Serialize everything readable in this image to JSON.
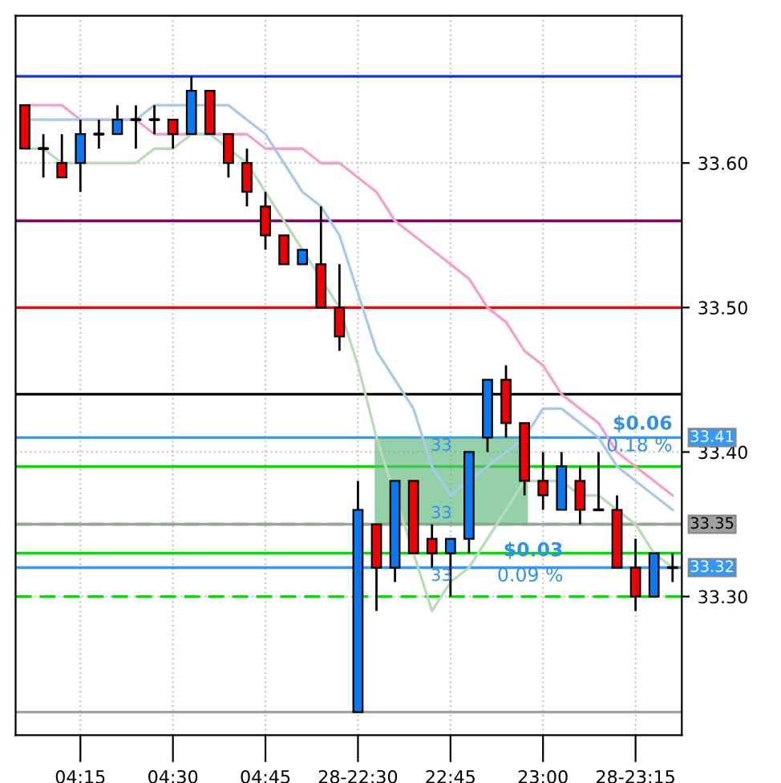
{
  "chart_data": {
    "type": "candlestick",
    "categories": [
      null,
      null,
      null,
      "04:15",
      null,
      null,
      null,
      null,
      "04:30",
      null,
      null,
      null,
      null,
      "04:45",
      null,
      null,
      null,
      null,
      "28-22:30",
      null,
      null,
      null,
      null,
      "22:45",
      null,
      null,
      null,
      null,
      "23:00",
      null,
      null,
      null,
      null,
      "28-23:15",
      null,
      null
    ],
    "ohlc": [
      [
        33.64,
        33.64,
        33.61,
        33.61
      ],
      [
        33.61,
        33.62,
        33.59,
        33.61
      ],
      [
        33.6,
        33.62,
        33.59,
        33.59
      ],
      [
        33.6,
        33.63,
        33.58,
        33.62
      ],
      [
        33.62,
        33.63,
        33.61,
        33.62
      ],
      [
        33.62,
        33.64,
        33.62,
        33.63
      ],
      [
        33.63,
        33.64,
        33.61,
        33.63
      ],
      [
        33.63,
        33.64,
        33.62,
        33.63
      ],
      [
        33.63,
        33.63,
        33.61,
        33.62
      ],
      [
        33.62,
        33.66,
        33.62,
        33.65
      ],
      [
        33.65,
        33.65,
        33.62,
        33.62
      ],
      [
        33.62,
        33.62,
        33.59,
        33.6
      ],
      [
        33.6,
        33.61,
        33.57,
        33.58
      ],
      [
        33.57,
        33.58,
        33.54,
        33.55
      ],
      [
        33.55,
        33.55,
        33.53,
        33.53
      ],
      [
        33.53,
        33.54,
        33.53,
        33.54
      ],
      [
        33.53,
        33.57,
        33.5,
        33.5
      ],
      [
        33.5,
        33.53,
        33.47,
        33.48
      ],
      [
        33.22,
        33.38,
        33.22,
        33.36
      ],
      [
        33.35,
        33.35,
        33.29,
        33.32
      ],
      [
        33.32,
        33.38,
        33.31,
        33.38
      ],
      [
        33.38,
        33.38,
        33.33,
        33.33
      ],
      [
        33.34,
        33.35,
        33.32,
        33.33
      ],
      [
        33.33,
        33.34,
        33.3,
        33.34
      ],
      [
        33.34,
        33.4,
        33.33,
        33.4
      ],
      [
        33.41,
        33.45,
        33.4,
        33.45
      ],
      [
        33.45,
        33.46,
        33.41,
        33.42
      ],
      [
        33.42,
        33.42,
        33.37,
        33.38
      ],
      [
        33.38,
        33.4,
        33.36,
        33.37
      ],
      [
        33.36,
        33.4,
        33.36,
        33.39
      ],
      [
        33.38,
        33.39,
        33.35,
        33.36
      ],
      [
        33.36,
        33.4,
        33.36,
        33.36
      ],
      [
        33.36,
        33.37,
        33.32,
        33.32
      ],
      [
        33.32,
        33.34,
        33.29,
        33.3
      ],
      [
        33.3,
        33.33,
        33.3,
        33.33
      ],
      [
        33.32,
        33.33,
        33.31,
        33.32
      ]
    ],
    "colors": [
      "#f00000",
      "#000000",
      "#f00000",
      "#0a78f0",
      "#000000",
      "#0a78f0",
      "#000000",
      "#000000",
      "#f00000",
      "#0a78f0",
      "#f00000",
      "#f00000",
      "#f00000",
      "#f00000",
      "#f00000",
      "#0a78f0",
      "#f00000",
      "#f00000",
      "#0a78f0",
      "#f00000",
      "#0a78f0",
      "#f00000",
      "#f00000",
      "#0a78f0",
      "#0a78f0",
      "#0a78f0",
      "#f00000",
      "#f00000",
      "#f00000",
      "#0a78f0",
      "#f00000",
      "#000000",
      "#f00000",
      "#f00000",
      "#0a78f0",
      "#000000"
    ],
    "series": [
      {
        "type": "line",
        "color": "#f4a0c8",
        "values": [
          33.64,
          33.64,
          33.64,
          33.63,
          33.63,
          33.63,
          33.63,
          33.62,
          33.62,
          33.62,
          33.62,
          33.62,
          33.62,
          33.61,
          33.61,
          33.61,
          33.6,
          33.6,
          33.59,
          33.58,
          33.56,
          33.55,
          33.54,
          33.53,
          33.52,
          33.5,
          33.49,
          33.47,
          33.46,
          33.44,
          33.43,
          33.42,
          33.4,
          33.39,
          33.38,
          33.37
        ]
      },
      {
        "type": "line",
        "color": "#a8c8ec",
        "values": [
          33.63,
          33.63,
          33.63,
          33.63,
          33.63,
          33.63,
          33.63,
          33.64,
          33.64,
          33.64,
          33.64,
          33.64,
          33.63,
          33.62,
          33.6,
          33.58,
          33.57,
          33.55,
          33.51,
          33.47,
          33.45,
          33.43,
          33.39,
          33.37,
          33.38,
          33.39,
          33.4,
          33.41,
          33.43,
          33.43,
          33.42,
          33.41,
          33.39,
          33.38,
          33.37,
          33.36
        ]
      },
      {
        "type": "line",
        "color": "#b8dcb8",
        "values": [
          33.61,
          33.61,
          33.6,
          33.6,
          33.6,
          33.6,
          33.6,
          33.61,
          33.61,
          33.62,
          33.62,
          33.61,
          33.6,
          33.58,
          33.56,
          33.54,
          33.52,
          33.5,
          33.46,
          33.41,
          33.37,
          33.33,
          33.29,
          33.31,
          33.32,
          33.34,
          33.36,
          33.38,
          33.38,
          33.38,
          33.37,
          33.37,
          33.36,
          33.35,
          33.33,
          33.32
        ]
      }
    ],
    "ref_lines": [
      {
        "axis": "y",
        "value": 33.66,
        "color": "#1030f0"
      },
      {
        "axis": "y",
        "value": 33.56,
        "color": "#800080"
      },
      {
        "axis": "y",
        "value": 33.5,
        "color": "#ff0000"
      },
      {
        "axis": "y",
        "value": 33.44,
        "color": "#000000"
      },
      {
        "axis": "y",
        "value": 33.39,
        "color": "#00e000"
      },
      {
        "axis": "y",
        "value": 33.35,
        "color": "#00e000",
        "line_style": "dashed"
      },
      {
        "axis": "y",
        "value": 33.33,
        "color": "#00e000"
      },
      {
        "axis": "y",
        "value": 33.3,
        "color": "#00e000",
        "line_style": "dashed"
      },
      {
        "axis": "y",
        "value": 33.22,
        "color": "#a0a0a0"
      },
      {
        "axis": "y",
        "value": 33.35,
        "color": "#a0a0a0",
        "label": "33.35"
      },
      {
        "axis": "y",
        "value": 33.41,
        "color": "#3399ff",
        "label": "33.41"
      },
      {
        "axis": "y",
        "value": 33.32,
        "color": "#3399ff",
        "label": "33.32"
      }
    ],
    "bands": [
      {
        "axis": "y",
        "from": 33.35,
        "to": 33.41,
        "color": "#5cb87a"
      }
    ],
    "annotations": [
      "$0.06",
      "0.18 %",
      "$0.03",
      "0.09 %",
      "33",
      "33",
      "33"
    ],
    "ylim": [
      33.204,
      33.702
    ],
    "yticks": [
      {
        "value": 33.3,
        "label": "33.30"
      },
      {
        "value": 33.4,
        "label": "33.40"
      },
      {
        "value": 33.5,
        "label": "33.50"
      },
      {
        "value": 33.6,
        "label": "33.60"
      }
    ],
    "grid": true
  }
}
